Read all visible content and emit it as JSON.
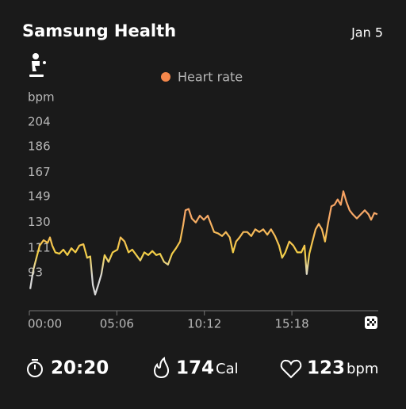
{
  "header": {
    "title": "Samsung Health",
    "date": "Jan 5"
  },
  "chart_data": {
    "type": "line",
    "y_label": "bpm",
    "x": [
      3,
      14,
      25,
      36,
      50,
      64,
      72,
      80,
      91,
      105,
      119,
      133,
      147,
      161,
      175,
      189,
      202,
      213,
      222,
      230,
      241,
      252,
      263,
      277,
      291,
      308,
      319,
      333,
      347,
      360,
      374,
      388,
      402,
      416,
      430,
      444,
      457,
      471,
      485,
      499,
      513,
      527,
      538,
      546,
      557,
      568,
      582,
      596,
      610,
      624,
      635,
      646,
      660,
      674,
      687,
      701,
      712,
      723,
      735,
      748,
      762,
      776,
      790,
      804,
      818,
      832,
      845,
      859,
      873,
      884,
      895,
      909,
      923,
      937,
      951,
      962,
      970,
      979,
      990,
      1001,
      1012,
      1023,
      1034,
      1045,
      1056,
      1067,
      1078,
      1089,
      1098,
      1109,
      1120,
      1131,
      1145,
      1159,
      1173,
      1186,
      1195,
      1206,
      1217
    ],
    "series": [
      {
        "name": "Heart rate",
        "color": "#f4874b",
        "values": [
          81,
          95,
          104,
          113,
          117,
          115,
          119,
          113,
          108,
          107,
          110,
          106,
          111,
          108,
          113,
          114,
          104,
          105,
          84,
          77,
          84,
          92,
          106,
          101,
          108,
          110,
          119,
          116,
          108,
          110,
          106,
          102,
          108,
          106,
          109,
          106,
          107,
          101,
          99,
          107,
          111,
          116,
          128,
          139,
          140,
          133,
          130,
          135,
          132,
          135,
          129,
          123,
          122,
          120,
          123,
          119,
          108,
          116,
          119,
          123,
          123,
          120,
          125,
          123,
          125,
          121,
          125,
          120,
          113,
          104,
          108,
          116,
          113,
          108,
          108,
          113,
          92,
          107,
          116,
          125,
          129,
          125,
          116,
          130,
          142,
          143,
          147,
          143,
          153,
          145,
          139,
          136,
          133,
          136,
          139,
          136,
          132,
          137,
          136
        ]
      }
    ],
    "xlim": [
      0,
      1220
    ],
    "ylim": [
      65,
      204
    ],
    "xticks": [
      {
        "value": 0,
        "label": "00:00"
      },
      {
        "value": 306,
        "label": "05:06"
      },
      {
        "value": 612,
        "label": "10:12"
      },
      {
        "value": 918,
        "label": "15:18"
      }
    ],
    "yticks": [
      93,
      111,
      130,
      149,
      167,
      186,
      204
    ]
  },
  "stats": {
    "duration": "20:20",
    "calories": {
      "value": "174",
      "unit": "Cal"
    },
    "heart_rate": {
      "value": "123",
      "unit": "bpm"
    }
  }
}
